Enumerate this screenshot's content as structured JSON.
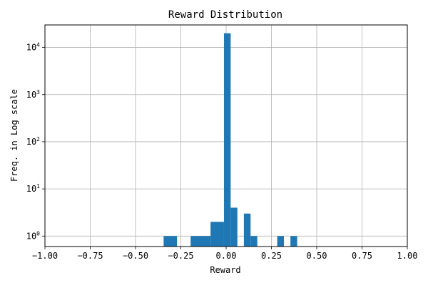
{
  "chart_data": {
    "type": "bar",
    "title": "Reward Distribution",
    "xlabel": "Reward",
    "ylabel": "Freq. in Log scale",
    "xlim": [
      -1.0,
      1.0
    ],
    "ylim": [
      0.6,
      30000
    ],
    "y_scale": "log",
    "grid": true,
    "bar_color": "#1f77b4",
    "grid_color": "#b0b0b0",
    "x_ticks": [
      -1.0,
      -0.75,
      -0.5,
      -0.25,
      0.0,
      0.25,
      0.5,
      0.75,
      1.0
    ],
    "x_tick_labels": [
      "−1.00",
      "−0.75",
      "−0.50",
      "−0.25",
      "0.00",
      "0.25",
      "0.50",
      "0.75",
      "1.00"
    ],
    "y_ticks": [
      1,
      10,
      100,
      1000,
      10000
    ],
    "y_tick_exponents": [
      "0",
      "1",
      "2",
      "3",
      "4"
    ],
    "y_tick_base": "10",
    "bins": [
      {
        "x0": -0.345,
        "x1": -0.271,
        "count": 1
      },
      {
        "x0": -0.196,
        "x1": -0.086,
        "count": 1
      },
      {
        "x0": -0.086,
        "x1": -0.012,
        "count": 2
      },
      {
        "x0": -0.012,
        "x1": 0.025,
        "count": 20000
      },
      {
        "x0": 0.025,
        "x1": 0.062,
        "count": 4
      },
      {
        "x0": 0.098,
        "x1": 0.135,
        "count": 3
      },
      {
        "x0": 0.135,
        "x1": 0.172,
        "count": 1
      },
      {
        "x0": 0.282,
        "x1": 0.319,
        "count": 1
      },
      {
        "x0": 0.355,
        "x1": 0.392,
        "count": 1
      }
    ]
  }
}
